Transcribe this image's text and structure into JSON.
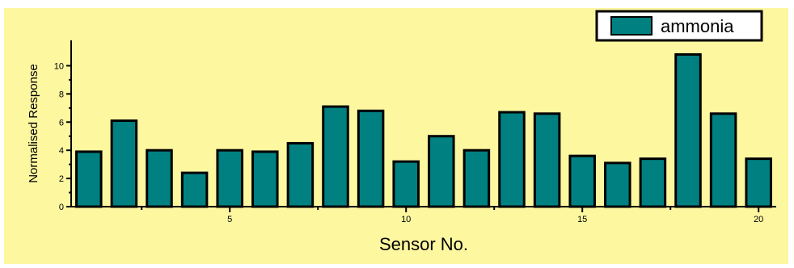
{
  "colors": {
    "background": "#fdf7a0",
    "bar_fill": "#008080",
    "bar_edge": "#000000",
    "axis": "#000000"
  },
  "chart_data": {
    "type": "bar",
    "x": [
      1,
      2,
      3,
      4,
      5,
      6,
      7,
      8,
      9,
      10,
      11,
      12,
      13,
      14,
      15,
      16,
      17,
      18,
      19,
      20
    ],
    "series": [
      {
        "name": "ammonia",
        "values": [
          3.9,
          6.1,
          4.0,
          2.4,
          4.0,
          3.9,
          4.5,
          7.1,
          6.8,
          3.2,
          5.0,
          4.0,
          6.7,
          6.6,
          3.6,
          3.1,
          3.4,
          10.8,
          6.6,
          3.4
        ]
      }
    ],
    "xlabel": "Sensor No.",
    "ylabel": "Normalised Response",
    "xticks": [
      5,
      10,
      15,
      20
    ],
    "yticks": [
      0,
      2,
      4,
      6,
      8,
      10
    ],
    "ylim": [
      0,
      11.8
    ],
    "grid": false,
    "legend": "top-right"
  }
}
